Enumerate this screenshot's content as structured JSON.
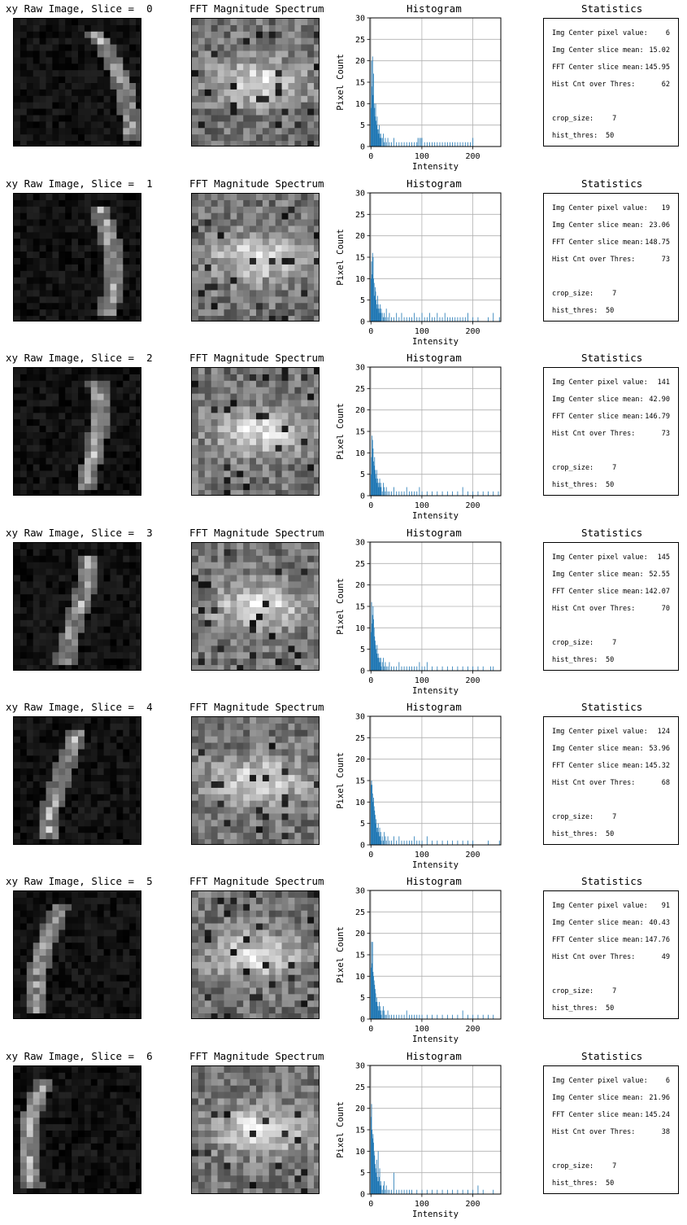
{
  "figure": {
    "rows": [
      {
        "raw_title": "xy Raw Image, Slice =  0",
        "fft_title": "FFT Magnitude Spectrum",
        "hist_title": "Histogram",
        "stats_title": "Statistics",
        "stats": [
          {
            "label": "Img Center pixel value:",
            "value": "6"
          },
          {
            "label": "Img Center slice mean:",
            "value": "15.02"
          },
          {
            "label": "FFT Center slice mean:",
            "value": "145.95"
          },
          {
            "label": "Hist Cnt over Thres:",
            "value": "62"
          }
        ],
        "params": [
          {
            "label": "crop_size:",
            "value": "7"
          },
          {
            "label": "hist_thres:",
            "value": "50"
          }
        ]
      },
      {
        "raw_title": "xy Raw Image, Slice =  1",
        "fft_title": "FFT Magnitude Spectrum",
        "hist_title": "Histogram",
        "stats_title": "Statistics",
        "stats": [
          {
            "label": "Img Center pixel value:",
            "value": "19"
          },
          {
            "label": "Img Center slice mean:",
            "value": "23.06"
          },
          {
            "label": "FFT Center slice mean:",
            "value": "148.75"
          },
          {
            "label": "Hist Cnt over Thres:",
            "value": "73"
          }
        ],
        "params": [
          {
            "label": "crop_size:",
            "value": "7"
          },
          {
            "label": "hist_thres:",
            "value": "50"
          }
        ]
      },
      {
        "raw_title": "xy Raw Image, Slice =  2",
        "fft_title": "FFT Magnitude Spectrum",
        "hist_title": "Histogram",
        "stats_title": "Statistics",
        "stats": [
          {
            "label": "Img Center pixel value:",
            "value": "141"
          },
          {
            "label": "Img Center slice mean:",
            "value": "42.90"
          },
          {
            "label": "FFT Center slice mean:",
            "value": "146.79"
          },
          {
            "label": "Hist Cnt over Thres:",
            "value": "73"
          }
        ],
        "params": [
          {
            "label": "crop_size:",
            "value": "7"
          },
          {
            "label": "hist_thres:",
            "value": "50"
          }
        ]
      },
      {
        "raw_title": "xy Raw Image, Slice =  3",
        "fft_title": "FFT Magnitude Spectrum",
        "hist_title": "Histogram",
        "stats_title": "Statistics",
        "stats": [
          {
            "label": "Img Center pixel value:",
            "value": "145"
          },
          {
            "label": "Img Center slice mean:",
            "value": "52.55"
          },
          {
            "label": "FFT Center slice mean:",
            "value": "142.07"
          },
          {
            "label": "Hist Cnt over Thres:",
            "value": "70"
          }
        ],
        "params": [
          {
            "label": "crop_size:",
            "value": "7"
          },
          {
            "label": "hist_thres:",
            "value": "50"
          }
        ]
      },
      {
        "raw_title": "xy Raw Image, Slice =  4",
        "fft_title": "FFT Magnitude Spectrum",
        "hist_title": "Histogram",
        "stats_title": "Statistics",
        "stats": [
          {
            "label": "Img Center pixel value:",
            "value": "124"
          },
          {
            "label": "Img Center slice mean:",
            "value": "53.96"
          },
          {
            "label": "FFT Center slice mean:",
            "value": "145.32"
          },
          {
            "label": "Hist Cnt over Thres:",
            "value": "68"
          }
        ],
        "params": [
          {
            "label": "crop_size:",
            "value": "7"
          },
          {
            "label": "hist_thres:",
            "value": "50"
          }
        ]
      },
      {
        "raw_title": "xy Raw Image, Slice =  5",
        "fft_title": "FFT Magnitude Spectrum",
        "hist_title": "Histogram",
        "stats_title": "Statistics",
        "stats": [
          {
            "label": "Img Center pixel value:",
            "value": "91"
          },
          {
            "label": "Img Center slice mean:",
            "value": "40.43"
          },
          {
            "label": "FFT Center slice mean:",
            "value": "147.76"
          },
          {
            "label": "Hist Cnt over Thres:",
            "value": "49"
          }
        ],
        "params": [
          {
            "label": "crop_size:",
            "value": "7"
          },
          {
            "label": "hist_thres:",
            "value": "50"
          }
        ]
      },
      {
        "raw_title": "xy Raw Image, Slice =  6",
        "fft_title": "FFT Magnitude Spectrum",
        "hist_title": "Histogram",
        "stats_title": "Statistics",
        "stats": [
          {
            "label": "Img Center pixel value:",
            "value": "6"
          },
          {
            "label": "Img Center slice mean:",
            "value": "21.96"
          },
          {
            "label": "FFT Center slice mean:",
            "value": "145.24"
          },
          {
            "label": "Hist Cnt over Thres:",
            "value": "38"
          }
        ],
        "params": [
          {
            "label": "crop_size:",
            "value": "7"
          },
          {
            "label": "hist_thres:",
            "value": "50"
          }
        ]
      }
    ]
  },
  "chart_data": [
    {
      "type": "bar",
      "title": "Histogram",
      "xlabel": "Intensity",
      "ylabel": "Pixel Count",
      "xlim": [
        -2,
        255
      ],
      "ylim": [
        0,
        30
      ],
      "xticks": [
        0,
        100,
        200
      ],
      "yticks": [
        0,
        5,
        10,
        15,
        20,
        25,
        30
      ],
      "grid": true,
      "bar_color": "#1f77b4",
      "x": [
        0,
        1,
        2,
        3,
        4,
        5,
        6,
        7,
        8,
        9,
        10,
        11,
        12,
        13,
        14,
        15,
        16,
        17,
        18,
        19,
        20,
        22,
        24,
        26,
        28,
        30,
        33,
        36,
        40,
        45,
        50,
        55,
        60,
        65,
        70,
        75,
        80,
        85,
        90,
        92,
        95,
        98,
        100,
        105,
        110,
        115,
        120,
        125,
        130,
        135,
        140,
        145,
        150,
        155,
        160,
        165,
        170,
        175,
        180,
        185,
        190,
        195,
        200
      ],
      "values": [
        9,
        20,
        14,
        21,
        12,
        17,
        10,
        9,
        7,
        10,
        6,
        5,
        7,
        4,
        3,
        4,
        5,
        3,
        2,
        3,
        2,
        2,
        3,
        1,
        2,
        1,
        2,
        1,
        1,
        2,
        1,
        1,
        1,
        1,
        1,
        1,
        1,
        1,
        1,
        2,
        2,
        2,
        2,
        1,
        1,
        1,
        1,
        1,
        1,
        1,
        1,
        1,
        1,
        1,
        1,
        1,
        1,
        1,
        1,
        1,
        1,
        1,
        2
      ]
    },
    {
      "type": "bar",
      "title": "Histogram",
      "xlabel": "Intensity",
      "ylabel": "Pixel Count",
      "xlim": [
        -2,
        255
      ],
      "ylim": [
        0,
        30
      ],
      "xticks": [
        0,
        100,
        200
      ],
      "yticks": [
        0,
        5,
        10,
        15,
        20,
        25,
        30
      ],
      "grid": true,
      "bar_color": "#1f77b4",
      "x": [
        0,
        1,
        2,
        3,
        4,
        5,
        6,
        7,
        8,
        9,
        10,
        11,
        12,
        13,
        14,
        15,
        16,
        17,
        18,
        19,
        20,
        22,
        24,
        26,
        28,
        30,
        33,
        36,
        40,
        45,
        50,
        55,
        60,
        65,
        70,
        75,
        80,
        85,
        90,
        95,
        100,
        105,
        110,
        115,
        120,
        125,
        130,
        135,
        140,
        145,
        150,
        155,
        160,
        165,
        170,
        175,
        180,
        185,
        190,
        200,
        210,
        230,
        240,
        252
      ],
      "values": [
        10,
        14,
        11,
        16,
        15,
        10,
        9,
        6,
        8,
        7,
        5,
        4,
        3,
        6,
        4,
        3,
        2,
        3,
        4,
        2,
        3,
        2,
        1,
        2,
        1,
        3,
        1,
        2,
        1,
        1,
        2,
        1,
        2,
        1,
        1,
        1,
        1,
        2,
        1,
        1,
        2,
        1,
        1,
        2,
        1,
        1,
        2,
        1,
        1,
        2,
        1,
        1,
        1,
        1,
        1,
        1,
        1,
        1,
        2,
        1,
        1,
        1,
        2,
        1
      ]
    },
    {
      "type": "bar",
      "title": "Histogram",
      "xlabel": "Intensity",
      "ylabel": "Pixel Count",
      "xlim": [
        -2,
        255
      ],
      "ylim": [
        0,
        30
      ],
      "xticks": [
        0,
        100,
        200
      ],
      "yticks": [
        0,
        5,
        10,
        15,
        20,
        25,
        30
      ],
      "grid": true,
      "bar_color": "#1f77b4",
      "x": [
        0,
        1,
        2,
        3,
        4,
        5,
        6,
        7,
        8,
        9,
        10,
        11,
        12,
        13,
        14,
        15,
        16,
        17,
        18,
        19,
        20,
        22,
        24,
        26,
        28,
        30,
        33,
        36,
        40,
        45,
        50,
        55,
        60,
        65,
        70,
        75,
        80,
        85,
        90,
        95,
        100,
        110,
        120,
        130,
        140,
        150,
        160,
        170,
        180,
        190,
        200,
        210,
        220,
        230,
        240,
        250
      ],
      "values": [
        5,
        9,
        14,
        13,
        11,
        8,
        7,
        9,
        6,
        5,
        4,
        6,
        3,
        4,
        3,
        2,
        3,
        4,
        2,
        3,
        2,
        1,
        3,
        2,
        1,
        2,
        1,
        1,
        1,
        2,
        1,
        1,
        1,
        1,
        2,
        1,
        1,
        1,
        1,
        2,
        1,
        1,
        1,
        1,
        1,
        1,
        1,
        1,
        2,
        1,
        1,
        1,
        1,
        1,
        1,
        1
      ]
    },
    {
      "type": "bar",
      "title": "Histogram",
      "xlabel": "Intensity",
      "ylabel": "Pixel Count",
      "xlim": [
        -2,
        255
      ],
      "ylim": [
        0,
        30
      ],
      "xticks": [
        0,
        100,
        200
      ],
      "yticks": [
        0,
        5,
        10,
        15,
        20,
        25,
        30
      ],
      "grid": true,
      "bar_color": "#1f77b4",
      "x": [
        0,
        1,
        2,
        3,
        4,
        5,
        6,
        7,
        8,
        9,
        10,
        11,
        12,
        13,
        14,
        15,
        16,
        17,
        18,
        19,
        20,
        22,
        24,
        26,
        28,
        30,
        33,
        36,
        40,
        45,
        50,
        55,
        60,
        65,
        70,
        75,
        80,
        85,
        90,
        95,
        100,
        105,
        110,
        120,
        130,
        140,
        150,
        160,
        170,
        180,
        190,
        200,
        210,
        220,
        235,
        240
      ],
      "values": [
        9,
        16,
        11,
        13,
        15,
        12,
        10,
        8,
        7,
        6,
        5,
        4,
        6,
        3,
        4,
        3,
        2,
        3,
        2,
        3,
        1,
        2,
        3,
        1,
        2,
        1,
        1,
        2,
        1,
        1,
        1,
        2,
        1,
        1,
        1,
        1,
        1,
        1,
        1,
        2,
        1,
        1,
        2,
        1,
        1,
        1,
        1,
        1,
        1,
        1,
        1,
        1,
        1,
        1,
        1,
        1
      ]
    },
    {
      "type": "bar",
      "title": "Histogram",
      "xlabel": "Intensity",
      "ylabel": "Pixel Count",
      "xlim": [
        -2,
        255
      ],
      "ylim": [
        0,
        30
      ],
      "xticks": [
        0,
        100,
        200
      ],
      "yticks": [
        0,
        5,
        10,
        15,
        20,
        25,
        30
      ],
      "grid": true,
      "bar_color": "#1f77b4",
      "x": [
        0,
        1,
        2,
        3,
        4,
        5,
        6,
        7,
        8,
        9,
        10,
        11,
        12,
        13,
        14,
        15,
        16,
        17,
        18,
        19,
        20,
        22,
        24,
        26,
        28,
        30,
        33,
        36,
        40,
        45,
        50,
        55,
        60,
        65,
        70,
        75,
        80,
        85,
        90,
        95,
        100,
        110,
        120,
        130,
        140,
        150,
        160,
        170,
        180,
        190,
        200,
        230,
        252
      ],
      "values": [
        14,
        15,
        14,
        12,
        10,
        11,
        9,
        8,
        7,
        5,
        6,
        4,
        3,
        4,
        5,
        3,
        2,
        4,
        2,
        3,
        1,
        2,
        1,
        3,
        2,
        1,
        2,
        1,
        1,
        2,
        1,
        2,
        1,
        1,
        1,
        1,
        1,
        2,
        1,
        1,
        1,
        2,
        1,
        1,
        1,
        1,
        1,
        1,
        1,
        1,
        1,
        1,
        1
      ]
    },
    {
      "type": "bar",
      "title": "Histogram",
      "xlabel": "Intensity",
      "ylabel": "Pixel Count",
      "xlim": [
        -2,
        255
      ],
      "ylim": [
        0,
        30
      ],
      "xticks": [
        0,
        100,
        200
      ],
      "yticks": [
        0,
        5,
        10,
        15,
        20,
        25,
        30
      ],
      "grid": true,
      "bar_color": "#1f77b4",
      "x": [
        0,
        1,
        2,
        3,
        4,
        5,
        6,
        7,
        8,
        9,
        10,
        11,
        12,
        13,
        14,
        15,
        16,
        17,
        18,
        19,
        20,
        22,
        24,
        26,
        28,
        30,
        33,
        36,
        40,
        45,
        50,
        55,
        60,
        65,
        70,
        75,
        80,
        85,
        90,
        95,
        100,
        110,
        120,
        130,
        140,
        150,
        160,
        170,
        180,
        190,
        200,
        210,
        220,
        230,
        240
      ],
      "values": [
        12,
        18,
        13,
        18,
        11,
        10,
        9,
        8,
        7,
        6,
        4,
        5,
        4,
        3,
        3,
        2,
        4,
        2,
        3,
        2,
        1,
        2,
        3,
        2,
        1,
        1,
        2,
        1,
        1,
        1,
        1,
        1,
        1,
        1,
        2,
        1,
        1,
        1,
        1,
        1,
        1,
        1,
        1,
        1,
        1,
        1,
        1,
        1,
        2,
        1,
        1,
        1,
        1,
        1,
        1
      ]
    },
    {
      "type": "bar",
      "title": "Histogram",
      "xlabel": "Intensity",
      "ylabel": "Pixel Count",
      "xlim": [
        -2,
        255
      ],
      "ylim": [
        0,
        30
      ],
      "xticks": [
        0,
        100,
        200
      ],
      "yticks": [
        0,
        5,
        10,
        15,
        20,
        25,
        30
      ],
      "grid": true,
      "bar_color": "#1f77b4",
      "x": [
        0,
        1,
        2,
        3,
        4,
        5,
        6,
        7,
        8,
        9,
        10,
        11,
        12,
        13,
        14,
        15,
        16,
        17,
        18,
        19,
        20,
        22,
        24,
        26,
        28,
        30,
        33,
        36,
        40,
        45,
        50,
        55,
        60,
        65,
        70,
        75,
        80,
        90,
        100,
        110,
        120,
        130,
        140,
        150,
        160,
        170,
        180,
        190,
        200,
        210,
        220,
        240
      ],
      "values": [
        18,
        21,
        15,
        13,
        14,
        12,
        10,
        9,
        7,
        6,
        5,
        8,
        4,
        3,
        10,
        3,
        4,
        6,
        2,
        3,
        2,
        1,
        2,
        3,
        1,
        2,
        1,
        1,
        1,
        5,
        1,
        1,
        1,
        1,
        1,
        1,
        1,
        1,
        1,
        1,
        1,
        1,
        1,
        1,
        1,
        1,
        1,
        1,
        1,
        2,
        1,
        1
      ]
    }
  ]
}
